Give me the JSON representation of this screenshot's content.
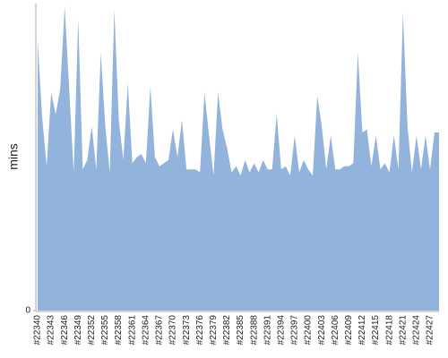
{
  "chart_data": {
    "type": "area",
    "y_label": "mins",
    "color": "#91b3dc",
    "categories": [
      "#22340",
      null,
      null,
      "#22343",
      null,
      null,
      "#22346",
      null,
      null,
      "#22349",
      null,
      null,
      "#22352",
      null,
      null,
      "#22355",
      null,
      null,
      "#22358",
      null,
      null,
      "#22361",
      null,
      null,
      "#22364",
      null,
      null,
      "#22367",
      null,
      null,
      "#22370",
      null,
      null,
      "#22373",
      null,
      null,
      "#22376",
      null,
      null,
      "#22379",
      null,
      null,
      "#22382",
      null,
      null,
      "#22385",
      null,
      null,
      "#22388",
      null,
      null,
      "#22391",
      null,
      null,
      "#22394",
      null,
      null,
      "#22397",
      null,
      null,
      "#22400",
      null,
      null,
      "#22403",
      null,
      null,
      "#22406",
      null,
      null,
      "#22409",
      null,
      null,
      "#22412",
      null,
      null,
      "#22415",
      null,
      null,
      "#22418",
      null,
      null,
      "#22421",
      null,
      null,
      "#22424",
      null,
      null,
      "#22427",
      null,
      null
    ],
    "values": [
      88,
      63,
      47,
      71,
      64,
      72,
      99,
      72,
      45,
      95,
      46,
      49,
      60,
      46,
      84,
      60,
      45,
      98,
      62,
      49,
      74,
      48,
      50,
      51,
      48,
      73,
      50,
      47,
      48,
      49,
      59,
      50,
      62,
      46,
      46,
      46,
      45,
      71,
      57,
      44,
      71,
      59,
      53,
      45,
      47,
      44,
      49,
      45,
      48,
      45,
      49,
      46,
      46,
      64,
      46,
      47,
      44,
      57,
      45,
      49,
      46,
      44,
      70,
      60,
      46,
      57,
      46,
      46,
      47,
      47,
      48,
      84,
      58,
      59,
      47,
      57,
      46,
      48,
      45,
      57,
      46,
      97,
      60,
      45,
      57,
      46,
      57,
      46,
      58,
      58
    ],
    "ylim": [
      0,
      100
    ],
    "yticks": [
      0
    ]
  }
}
